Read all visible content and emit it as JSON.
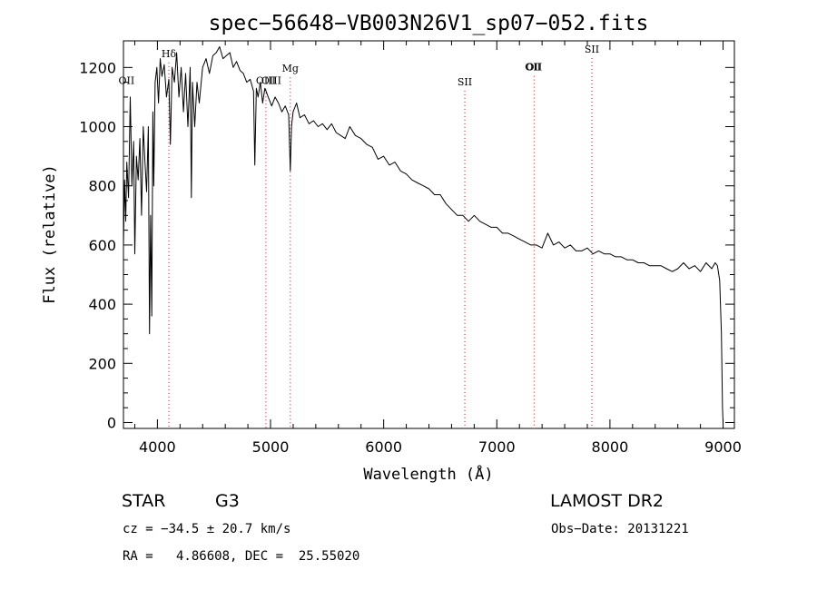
{
  "chart_data": {
    "type": "line",
    "title": "spec−56648−VB003N26V1_sp07−052.fits",
    "xlabel": "Wavelength (Å)",
    "ylabel": "Flux (relative)",
    "xlim": [
      3700,
      9100
    ],
    "ylim": [
      -20,
      1290
    ],
    "x_ticks": [
      4000,
      5000,
      6000,
      7000,
      8000,
      9000
    ],
    "y_ticks": [
      0,
      200,
      400,
      600,
      800,
      1000,
      1200
    ],
    "grid": false,
    "line_color": "#000000",
    "marker_color": "#c0392b",
    "spectrum": {
      "x": [
        3700,
        3710,
        3720,
        3730,
        3745,
        3760,
        3775,
        3790,
        3800,
        3815,
        3830,
        3845,
        3860,
        3875,
        3890,
        3905,
        3920,
        3930,
        3940,
        3950,
        3960,
        3968,
        3980,
        3995,
        4010,
        4025,
        4040,
        4060,
        4080,
        4101,
        4115,
        4130,
        4150,
        4170,
        4190,
        4210,
        4230,
        4250,
        4270,
        4290,
        4300,
        4310,
        4330,
        4350,
        4370,
        4400,
        4430,
        4460,
        4490,
        4520,
        4550,
        4580,
        4610,
        4640,
        4670,
        4700,
        4730,
        4760,
        4790,
        4820,
        4850,
        4861,
        4875,
        4890,
        4910,
        4930,
        4950,
        4980,
        5010,
        5040,
        5070,
        5100,
        5130,
        5160,
        5175,
        5185,
        5200,
        5230,
        5260,
        5300,
        5340,
        5380,
        5420,
        5460,
        5500,
        5540,
        5580,
        5620,
        5660,
        5700,
        5750,
        5800,
        5850,
        5900,
        5950,
        6000,
        6050,
        6100,
        6150,
        6200,
        6250,
        6300,
        6350,
        6400,
        6450,
        6500,
        6550,
        6600,
        6650,
        6700,
        6750,
        6800,
        6850,
        6900,
        6950,
        7000,
        7050,
        7100,
        7150,
        7200,
        7250,
        7300,
        7350,
        7400,
        7450,
        7500,
        7550,
        7600,
        7650,
        7700,
        7750,
        7800,
        7850,
        7900,
        7950,
        8000,
        8050,
        8100,
        8150,
        8200,
        8250,
        8300,
        8350,
        8400,
        8450,
        8500,
        8550,
        8600,
        8650,
        8700,
        8750,
        8800,
        8850,
        8900,
        8930,
        8950,
        8970,
        8985,
        8995,
        9000
      ],
      "y": [
        600,
        820,
        680,
        880,
        760,
        1100,
        800,
        950,
        570,
        900,
        820,
        960,
        700,
        1000,
        880,
        780,
        1000,
        300,
        700,
        360,
        1050,
        800,
        1150,
        1200,
        1080,
        1230,
        1170,
        1210,
        1100,
        1160,
        940,
        1200,
        1150,
        1250,
        1100,
        1200,
        1050,
        1180,
        1000,
        1200,
        760,
        1150,
        1000,
        1150,
        1080,
        1200,
        1230,
        1180,
        1240,
        1250,
        1270,
        1230,
        1240,
        1250,
        1200,
        1220,
        1190,
        1180,
        1150,
        1160,
        1120,
        870,
        1130,
        1100,
        1150,
        1080,
        1130,
        1100,
        1070,
        1100,
        1080,
        1050,
        1070,
        1040,
        850,
        1000,
        1050,
        1080,
        1030,
        1040,
        1010,
        1020,
        1000,
        1010,
        990,
        1010,
        980,
        970,
        960,
        1000,
        970,
        960,
        940,
        930,
        890,
        900,
        870,
        880,
        850,
        840,
        820,
        810,
        800,
        790,
        770,
        770,
        740,
        720,
        700,
        700,
        680,
        700,
        680,
        670,
        660,
        660,
        640,
        640,
        630,
        620,
        610,
        600,
        600,
        590,
        640,
        600,
        610,
        590,
        600,
        580,
        580,
        590,
        570,
        580,
        570,
        570,
        560,
        560,
        550,
        550,
        540,
        540,
        530,
        530,
        530,
        520,
        510,
        520,
        540,
        520,
        530,
        510,
        540,
        520,
        540,
        530,
        480,
        300,
        50,
        0
      ]
    },
    "lines": [
      {
        "label": "OII",
        "x": 3727,
        "label_y": 1145,
        "marker": false
      },
      {
        "label": "Hδ",
        "x": 4101,
        "label_y": 1235,
        "marker": true
      },
      {
        "label": "OIII",
        "x": 4959,
        "label_y": 1145,
        "marker": true
      },
      {
        "label": "OIII",
        "x": 5007,
        "label_y": 1145,
        "marker": false
      },
      {
        "label": "Mg",
        "x": 5175,
        "label_y": 1185,
        "marker": true
      },
      {
        "label": "SII",
        "x": 6717,
        "label_y": 1140,
        "marker": true
      },
      {
        "label": "OII",
        "x": 7320,
        "label_y": 1190,
        "marker": false
      },
      {
        "label": "OII",
        "x": 7330,
        "label_y": 1190,
        "marker": true
      },
      {
        "label": "SII",
        "x": 7840,
        "label_y": 1250,
        "marker": true
      }
    ]
  },
  "info": {
    "object_class": "STAR",
    "subclass": "G3",
    "survey": "LAMOST DR2",
    "cz": "cz = −34.5 ± 20.7 km/s",
    "obs_date": "Obs−Date: 20131221",
    "coords": "RA =   4.86608, DEC =  25.55020"
  }
}
